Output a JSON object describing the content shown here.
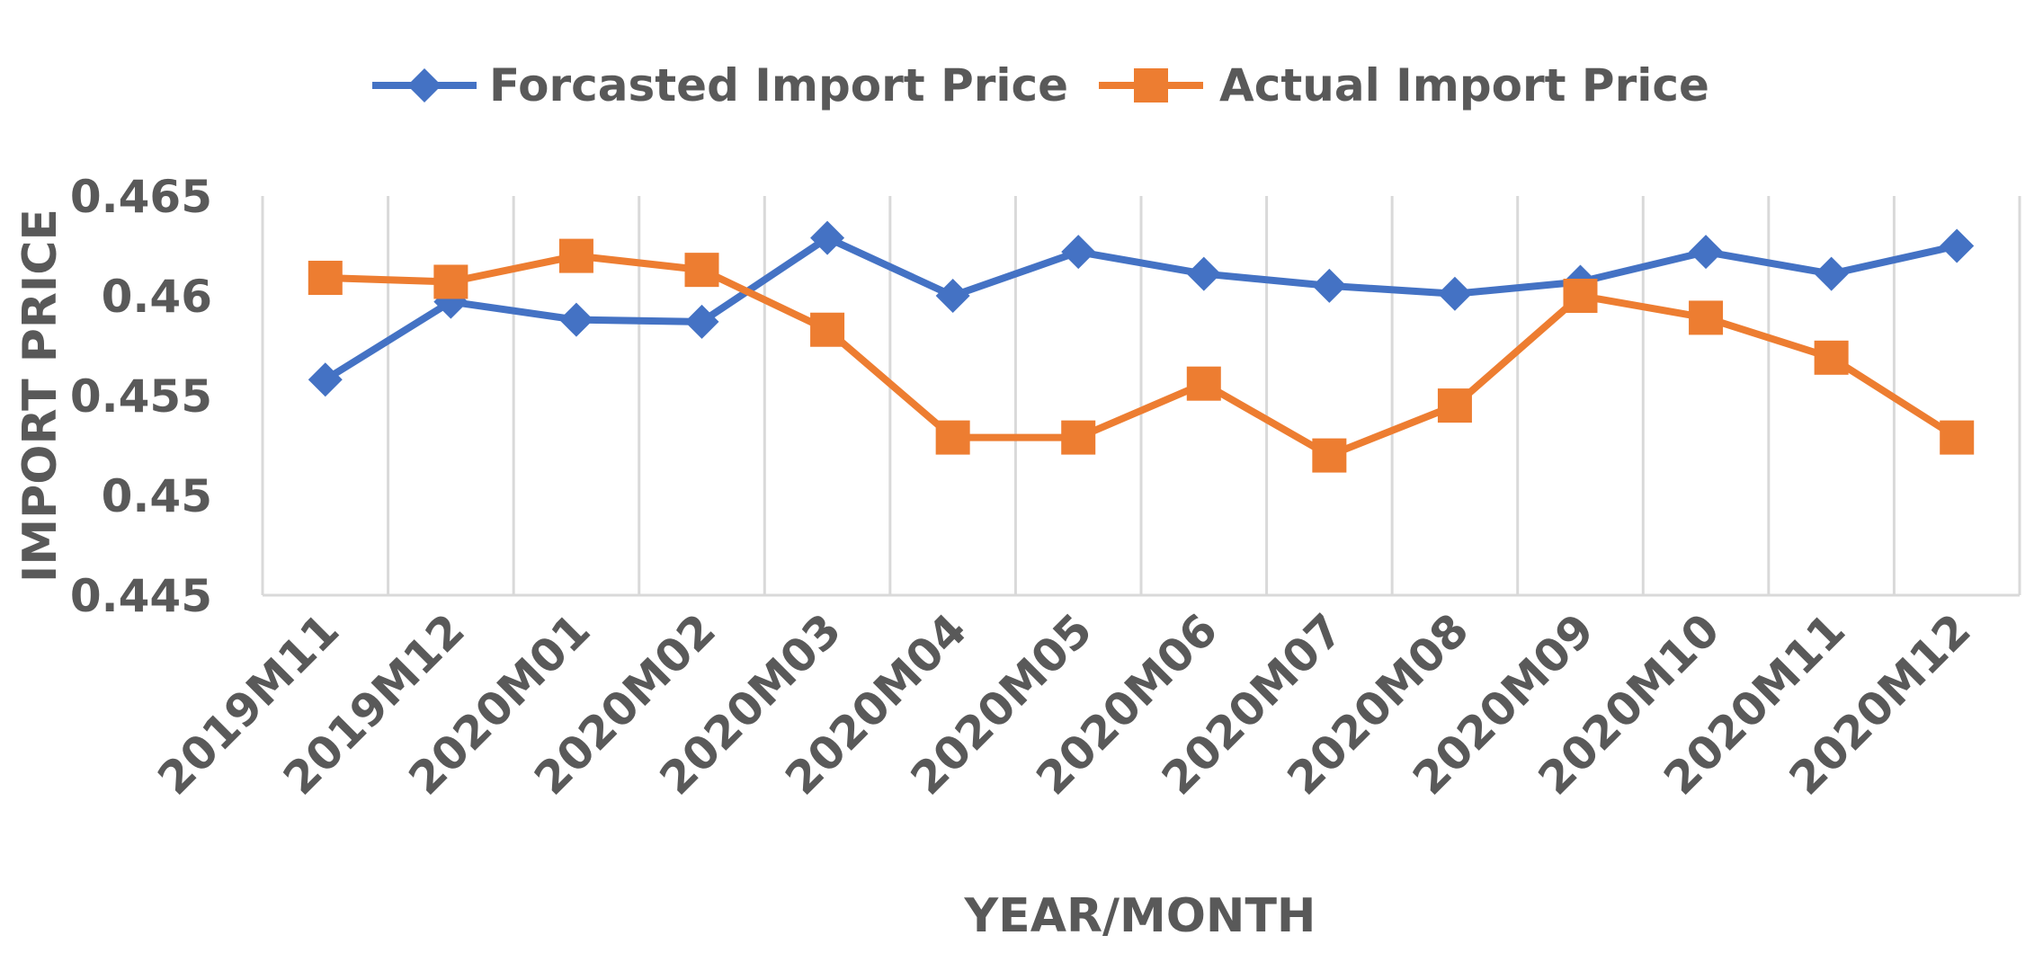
{
  "chart_data": {
    "type": "line",
    "title": "",
    "xlabel": "YEAR/MONTH",
    "ylabel": "IMPORT PRICE",
    "ylim": [
      0.445,
      0.465
    ],
    "yticks": [
      "0.445",
      "0.45",
      "0.455",
      "0.46",
      "0.465"
    ],
    "grid": "vertical",
    "legend_position": "top",
    "categories": [
      "2019M11",
      "2019M12",
      "2020M01",
      "2020M02",
      "2020M03",
      "2020M04",
      "2020M05",
      "2020M06",
      "2020M07",
      "2020M08",
      "2020M09",
      "2020M10",
      "2020M11",
      "2020M12"
    ],
    "series": [
      {
        "name": "Forcasted Import Price",
        "color": "#4472C4",
        "marker": "diamond",
        "values": [
          0.4558,
          0.4597,
          0.4588,
          0.4587,
          0.4629,
          0.46,
          0.4622,
          0.4611,
          0.4605,
          0.4601,
          0.4607,
          0.4622,
          0.4611,
          0.4625
        ]
      },
      {
        "name": "Actual Import Price",
        "color": "#ED7D31",
        "marker": "square",
        "values": [
          0.4609,
          0.4607,
          0.462,
          0.4613,
          0.4583,
          0.4529,
          0.4529,
          0.4556,
          0.452,
          0.4545,
          0.46,
          0.4589,
          0.4569,
          0.4529
        ]
      }
    ]
  }
}
